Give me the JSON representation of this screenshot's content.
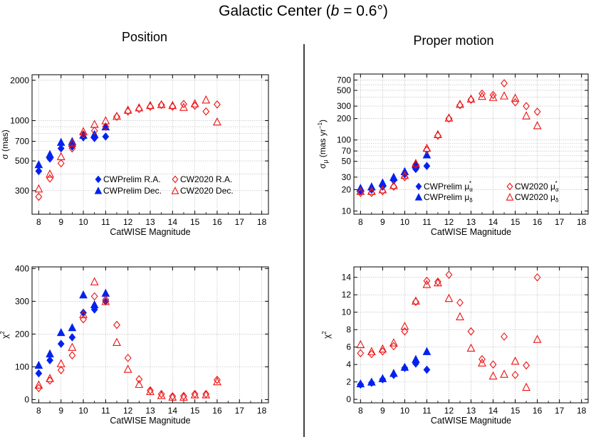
{
  "figure": {
    "title_prefix": "Galactic Center (",
    "title_var": "b",
    "title_suffix": " = 0.6°)",
    "col_left_title": "Position",
    "col_right_title": "Proper motion"
  },
  "colors": {
    "cwprelim": "#0022ee",
    "cw2020": "#ee1111",
    "grid": "#b4b4b4"
  },
  "chart_data": [
    {
      "id": "pos_sigma",
      "type": "scatter",
      "ylog": true,
      "xlabel": "CatWISE Magnitude",
      "ylabel": "σ (mas)",
      "xlim": [
        7.7,
        18.3
      ],
      "ylim": [
        200,
        2200
      ],
      "xticks": [
        8,
        9,
        10,
        11,
        12,
        13,
        14,
        15,
        16,
        17,
        18
      ],
      "yticks": [
        300,
        500,
        700,
        1000,
        2000
      ],
      "gridlines": [
        300,
        400,
        500,
        600,
        700,
        800,
        900,
        1000,
        2000
      ],
      "legend": [
        {
          "label": "CWPrelim R.A.",
          "marker": "diamond-filled",
          "color": "#0022ee"
        },
        {
          "label": "CWPrelim Dec.",
          "marker": "triangle-filled",
          "color": "#0022ee"
        },
        {
          "label": "CW2020 R.A.",
          "marker": "diamond-open",
          "color": "#ee1111"
        },
        {
          "label": "CW2020 Dec.",
          "marker": "triangle-open",
          "color": "#ee1111"
        }
      ],
      "series": [
        {
          "name": "CWPrelim R.A.",
          "marker": "diamond-filled",
          "color": "#0022ee",
          "x": [
            8,
            8.5,
            9,
            9.5,
            10,
            10.5,
            11
          ],
          "y": [
            420,
            520,
            620,
            640,
            750,
            740,
            760
          ]
        },
        {
          "name": "CWPrelim Dec.",
          "marker": "triangle-filled",
          "color": "#0022ee",
          "x": [
            8,
            8.5,
            9,
            9.5,
            10,
            10.5,
            11
          ],
          "y": [
            470,
            560,
            690,
            700,
            780,
            790,
            900
          ]
        },
        {
          "name": "CW2020 R.A.",
          "marker": "diamond-open",
          "color": "#ee1111",
          "x": [
            8,
            8.5,
            9,
            9.5,
            10,
            10.5,
            11,
            11.5,
            12,
            12.5,
            13,
            13.5,
            14,
            14.5,
            15,
            15.5,
            16
          ],
          "y": [
            270,
            370,
            480,
            620,
            790,
            840,
            900,
            1070,
            1170,
            1220,
            1270,
            1310,
            1270,
            1330,
            1290,
            1170,
            1320
          ]
        },
        {
          "name": "CW2020 Dec.",
          "marker": "triangle-open",
          "color": "#ee1111",
          "x": [
            8,
            8.5,
            9,
            9.5,
            10,
            10.5,
            11,
            11.5,
            12,
            12.5,
            13,
            13.5,
            14,
            14.5,
            15,
            15.5,
            16
          ],
          "y": [
            310,
            400,
            540,
            680,
            830,
            940,
            1000,
            1080,
            1200,
            1250,
            1300,
            1320,
            1300,
            1260,
            1340,
            1430,
            980
          ]
        }
      ]
    },
    {
      "id": "pos_chi2",
      "type": "scatter",
      "ylog": false,
      "xlabel": "CatWISE Magnitude",
      "ylabel": "χ²",
      "xlim": [
        7.7,
        18.3
      ],
      "ylim": [
        -10,
        405
      ],
      "xticks": [
        8,
        9,
        10,
        11,
        12,
        13,
        14,
        15,
        16,
        17,
        18
      ],
      "yticks": [
        0,
        100,
        200,
        300,
        400
      ],
      "gridlines": [
        100,
        200,
        300
      ],
      "series": [
        {
          "name": "CWPrelim R.A.",
          "marker": "diamond-filled",
          "color": "#0022ee",
          "x": [
            8,
            8.5,
            9,
            9.5,
            10,
            10.5,
            11
          ],
          "y": [
            80,
            120,
            170,
            190,
            265,
            275,
            300
          ]
        },
        {
          "name": "CWPrelim Dec.",
          "marker": "triangle-filled",
          "color": "#0022ee",
          "x": [
            8,
            8.5,
            9,
            9.5,
            10,
            10.5,
            11
          ],
          "y": [
            105,
            140,
            205,
            220,
            320,
            290,
            325
          ]
        },
        {
          "name": "CW2020 R.A.",
          "marker": "diamond-open",
          "color": "#ee1111",
          "x": [
            8,
            8.5,
            9,
            9.5,
            10,
            10.5,
            11,
            11.5,
            12,
            12.5,
            13,
            13.5,
            14,
            14.5,
            15,
            15.5,
            16
          ],
          "y": [
            35,
            58,
            90,
            135,
            245,
            315,
            305,
            228,
            127,
            62,
            28,
            17,
            10,
            11,
            17,
            17,
            60
          ]
        },
        {
          "name": "CW2020 Dec.",
          "marker": "triangle-open",
          "color": "#ee1111",
          "x": [
            8,
            8.5,
            9,
            9.5,
            10,
            10.5,
            11,
            11.5,
            12,
            12.5,
            13,
            13.5,
            14,
            14.5,
            15,
            15.5,
            16
          ],
          "y": [
            45,
            65,
            110,
            160,
            260,
            360,
            300,
            175,
            93,
            47,
            25,
            13,
            8,
            8,
            15,
            15,
            55
          ]
        }
      ]
    },
    {
      "id": "pm_sigma",
      "type": "scatter",
      "ylog": true,
      "xlabel": "CatWISE Magnitude",
      "ylabel_main": "σ",
      "ylabel_sub": "μ",
      "ylabel_tail": " (mas yr",
      "ylabel_sup": "−1",
      "ylabel_close": ")",
      "xlim": [
        7.7,
        18.3
      ],
      "ylim": [
        9,
        850
      ],
      "xticks": [
        8,
        9,
        10,
        11,
        12,
        13,
        14,
        15,
        16,
        17,
        18
      ],
      "yticks": [
        10,
        20,
        30,
        50,
        70,
        100,
        200,
        300,
        500,
        700
      ],
      "gridlines": [
        20,
        30,
        40,
        50,
        60,
        70,
        80,
        90,
        100,
        200,
        300,
        400,
        500,
        600,
        700
      ],
      "legend": [
        {
          "label": "CWPrelim μ",
          "sub": "α",
          "sup": "*",
          "marker": "diamond-filled",
          "color": "#0022ee"
        },
        {
          "label": "CWPrelim μ",
          "sub": "δ",
          "sup": "",
          "marker": "triangle-filled",
          "color": "#0022ee"
        },
        {
          "label": "CW2020 μ",
          "sub": "α",
          "sup": "*",
          "marker": "diamond-open",
          "color": "#ee1111"
        },
        {
          "label": "CW2020 μ",
          "sub": "δ",
          "sup": "",
          "marker": "triangle-open",
          "color": "#ee1111"
        }
      ],
      "series": [
        {
          "name": "CWPrelim μα*",
          "marker": "diamond-filled",
          "color": "#0022ee",
          "x": [
            8,
            8.5,
            9,
            9.5,
            10,
            10.5,
            11
          ],
          "y": [
            19,
            20,
            22,
            27,
            33,
            39,
            43
          ]
        },
        {
          "name": "CWPrelim μδ",
          "marker": "triangle-filled",
          "color": "#0022ee",
          "x": [
            8,
            8.5,
            9,
            9.5,
            10,
            10.5,
            11
          ],
          "y": [
            21,
            22,
            25,
            30,
            36,
            45,
            62
          ]
        },
        {
          "name": "CW2020 μα*",
          "marker": "diamond-open",
          "color": "#ee1111",
          "x": [
            8,
            8.5,
            9,
            9.5,
            10,
            10.5,
            11,
            11.5,
            12,
            12.5,
            13,
            13.5,
            14,
            14.5,
            15,
            15.5,
            16
          ],
          "y": [
            18,
            18,
            19,
            22,
            30,
            45,
            72,
            115,
            200,
            310,
            370,
            450,
            430,
            630,
            340,
            300,
            250
          ]
        },
        {
          "name": "CW2020 μδ",
          "marker": "triangle-open",
          "color": "#ee1111",
          "x": [
            8,
            8.5,
            9,
            9.5,
            10,
            10.5,
            11,
            11.5,
            12,
            12.5,
            13,
            13.5,
            14,
            14.5,
            15,
            15.5,
            16
          ],
          "y": [
            19,
            19,
            20,
            23,
            32,
            47,
            77,
            120,
            205,
            320,
            380,
            415,
            400,
            420,
            390,
            220,
            160
          ]
        }
      ]
    },
    {
      "id": "pm_chi2",
      "type": "scatter",
      "ylog": false,
      "xlabel": "CatWISE Magnitude",
      "ylabel": "χ²",
      "xlim": [
        7.7,
        18.3
      ],
      "ylim": [
        -0.4,
        15.2
      ],
      "xticks": [
        8,
        9,
        10,
        11,
        12,
        13,
        14,
        15,
        16,
        17,
        18
      ],
      "yticks": [
        0,
        2,
        4,
        6,
        8,
        10,
        12,
        14
      ],
      "gridlines": [
        2,
        4,
        6,
        8,
        10,
        12,
        14
      ],
      "series": [
        {
          "name": "CWPrelim μα*",
          "marker": "diamond-filled",
          "color": "#0022ee",
          "x": [
            8,
            8.5,
            9,
            9.5,
            10,
            10.5,
            11
          ],
          "y": [
            1.7,
            1.9,
            2.3,
            2.8,
            3.6,
            4.1,
            3.4
          ]
        },
        {
          "name": "CWPrelim μδ",
          "marker": "triangle-filled",
          "color": "#0022ee",
          "x": [
            8,
            8.5,
            9,
            9.5,
            10,
            10.5,
            11
          ],
          "y": [
            1.8,
            2.0,
            2.4,
            3.0,
            3.7,
            4.6,
            5.5
          ]
        },
        {
          "name": "CW2020 μα*",
          "marker": "diamond-open",
          "color": "#ee1111",
          "x": [
            8,
            8.5,
            9,
            9.5,
            10,
            10.5,
            11,
            11.5,
            12,
            12.5,
            13,
            13.5,
            14,
            14.5,
            15,
            15.5,
            16
          ],
          "y": [
            5.3,
            5.2,
            5.5,
            6.1,
            7.8,
            11.2,
            13.6,
            13.5,
            14.3,
            11.1,
            7.8,
            4.6,
            4.0,
            7.2,
            2.8,
            3.9,
            14.0
          ]
        },
        {
          "name": "CW2020 μδ",
          "marker": "triangle-open",
          "color": "#ee1111",
          "x": [
            8,
            8.5,
            9,
            9.5,
            10,
            10.5,
            11,
            11.5,
            12,
            12.5,
            13,
            13.5,
            14,
            14.5,
            15,
            15.5,
            16
          ],
          "y": [
            6.3,
            5.5,
            5.8,
            6.5,
            8.4,
            11.3,
            13.2,
            13.4,
            11.6,
            9.5,
            5.9,
            4.2,
            2.7,
            2.9,
            4.4,
            1.4,
            6.9
          ]
        }
      ]
    }
  ]
}
